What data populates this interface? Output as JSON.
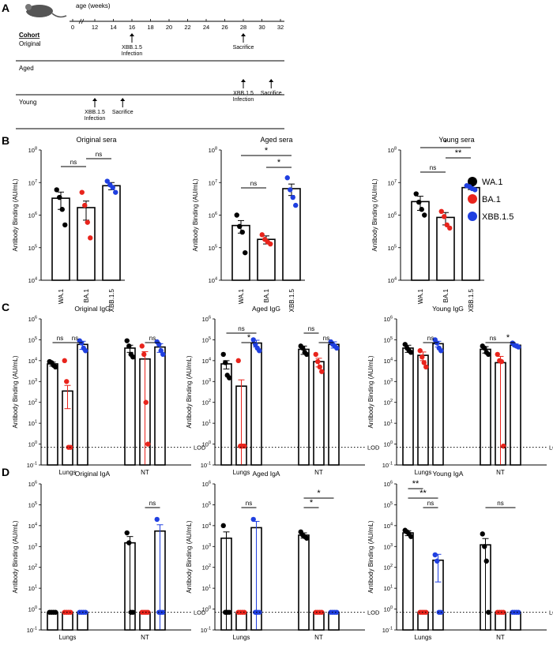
{
  "panel_labels": {
    "a": "A",
    "b": "B",
    "c": "C",
    "d": "D"
  },
  "timeline": {
    "axis_title": "age (weeks)",
    "ticks": [
      "0",
      "12",
      "14",
      "16",
      "18",
      "20",
      "22",
      "24",
      "26",
      "28",
      "30",
      "32"
    ],
    "cohort_header": "Cohort",
    "rows": [
      {
        "name": "Original",
        "events": [
          {
            "week": 16,
            "label": "XBB.1.5\nInfection"
          },
          {
            "week": 28,
            "label": "Sacrifice"
          }
        ]
      },
      {
        "name": "Aged",
        "events": [
          {
            "week": 28,
            "label": "XBB.1.5\nInfection"
          },
          {
            "week": 31,
            "label": "Sacrifice"
          }
        ]
      },
      {
        "name": "Young",
        "events": [
          {
            "week": 12,
            "label": "XBB.1.5\nInfection"
          },
          {
            "week": 15,
            "label": "Sacrifice"
          }
        ]
      }
    ]
  },
  "legend": [
    {
      "label": "WA.1",
      "color": "#000000"
    },
    {
      "label": "BA.1",
      "color": "#e8241c"
    },
    {
      "label": "XBB.1.5",
      "color": "#1f3fe0"
    }
  ],
  "colors": {
    "WA.1": "#000000",
    "BA.1": "#e8241c",
    "XBB.1.5": "#1f3fe0"
  },
  "chart_data": [
    {
      "type": "bar",
      "panel": "B",
      "title": "Original sera",
      "ylabel": "Antibody Binding (AU/mL)",
      "yscale": "log",
      "ylim": [
        10000,
        100000000
      ],
      "yticks": [
        {
          "v": 10000,
          "b": "10",
          "e": "4"
        },
        {
          "v": 100000,
          "b": "10",
          "e": "5"
        },
        {
          "v": 1000000,
          "b": "10",
          "e": "6"
        },
        {
          "v": 10000000,
          "b": "10",
          "e": "7"
        },
        {
          "v": 100000000,
          "b": "10",
          "e": "8"
        }
      ],
      "categories": [
        "WA.1",
        "BA.1",
        "XBB.1.5"
      ],
      "values": [
        3300000,
        1700000,
        8000000
      ],
      "errors": [
        1800000,
        1000000,
        2000000
      ],
      "points": [
        [
          6000000,
          3500000,
          1500000,
          500000
        ],
        [
          5000000,
          2000000,
          600000,
          200000
        ],
        [
          11000000,
          8500000,
          7000000,
          5000000
        ]
      ],
      "sig": [
        {
          "from": 0,
          "to": 1,
          "label": "ns",
          "level": 0
        },
        {
          "from": 1,
          "to": 2,
          "label": "ns",
          "level": 1
        }
      ]
    },
    {
      "type": "bar",
      "panel": "B",
      "title": "Aged sera",
      "ylabel": "Antibody Binding (AU/mL)",
      "yscale": "log",
      "ylim": [
        10000,
        100000000
      ],
      "yticks": [
        {
          "v": 10000,
          "b": "10",
          "e": "4"
        },
        {
          "v": 100000,
          "b": "10",
          "e": "5"
        },
        {
          "v": 1000000,
          "b": "10",
          "e": "6"
        },
        {
          "v": 10000000,
          "b": "10",
          "e": "7"
        },
        {
          "v": 100000000,
          "b": "10",
          "e": "8"
        }
      ],
      "categories": [
        "WA.1",
        "BA.1",
        "XBB.1.5"
      ],
      "values": [
        480000,
        180000,
        6500000
      ],
      "errors": [
        200000,
        50000,
        2500000
      ],
      "points": [
        [
          1000000,
          450000,
          300000,
          70000
        ],
        [
          250000,
          180000,
          150000,
          130000
        ],
        [
          14000000,
          6000000,
          3500000,
          2000000
        ]
      ],
      "sig": [
        {
          "from": 0,
          "to": 1,
          "label": "ns",
          "level": 0
        },
        {
          "from": 1,
          "to": 2,
          "label": "*",
          "level": 1
        },
        {
          "from": 0,
          "to": 2,
          "label": "*",
          "level": 2
        }
      ]
    },
    {
      "type": "bar",
      "panel": "B",
      "title": "Young sera",
      "ylabel": "Antibody Binding (AU/mL)",
      "yscale": "log",
      "ylim": [
        10000,
        100000000
      ],
      "yticks": [
        {
          "v": 10000,
          "b": "10",
          "e": "4"
        },
        {
          "v": 100000,
          "b": "10",
          "e": "5"
        },
        {
          "v": 1000000,
          "b": "10",
          "e": "6"
        },
        {
          "v": 10000000,
          "b": "10",
          "e": "7"
        },
        {
          "v": 100000000,
          "b": "10",
          "e": "8"
        }
      ],
      "categories": [
        "WA.1",
        "BA.1",
        "XBB.1.5"
      ],
      "values": [
        2600000,
        850000,
        7000000
      ],
      "errors": [
        1200000,
        350000,
        900000
      ],
      "points": [
        [
          4500000,
          2500000,
          1500000,
          1000000
        ],
        [
          1300000,
          900000,
          500000,
          400000
        ],
        [
          8000000,
          7500000,
          6500000,
          6000000
        ]
      ],
      "sig": [
        {
          "from": 0,
          "to": 1,
          "label": "ns",
          "level": 0
        },
        {
          "from": 1,
          "to": 2,
          "label": "**",
          "level": 1
        },
        {
          "from": 0,
          "to": 2,
          "label": "*",
          "level": 2
        }
      ]
    },
    {
      "type": "bar",
      "panel": "C",
      "title": "Original IgG",
      "ylabel": "Antibody Binding (AU/mL)",
      "yscale": "log",
      "ylim": [
        0.1,
        1000000
      ],
      "yticks": [
        {
          "v": 0.1,
          "b": "10",
          "e": "-1"
        },
        {
          "v": 1,
          "b": "10",
          "e": "0"
        },
        {
          "v": 10,
          "b": "10",
          "e": "1"
        },
        {
          "v": 100,
          "b": "10",
          "e": "2"
        },
        {
          "v": 1000,
          "b": "10",
          "e": "3"
        },
        {
          "v": 10000,
          "b": "10",
          "e": "4"
        },
        {
          "v": 100000,
          "b": "10",
          "e": "5"
        },
        {
          "v": 1000000,
          "b": "10",
          "e": "6"
        }
      ],
      "groups": [
        "Lungs",
        "NT"
      ],
      "lod": 0.7,
      "lod_label": "LOD",
      "values": [
        [
          7000,
          350,
          60000
        ],
        [
          40000,
          12000,
          45000
        ]
      ],
      "errors": [
        [
          1500,
          300,
          25000
        ],
        [
          15000,
          15000,
          20000
        ]
      ],
      "points": [
        [
          [
            9000,
            8000,
            6000,
            5000
          ],
          [
            10000,
            1000,
            0.7,
            0.7
          ],
          [
            90000,
            70000,
            40000,
            30000
          ]
        ],
        [
          [
            90000,
            50000,
            20000,
            15000
          ],
          [
            50000,
            20000,
            100,
            1
          ],
          [
            80000,
            60000,
            30000,
            20000
          ]
        ]
      ],
      "sig": [
        {
          "g": 0,
          "from": 0,
          "to": 1,
          "label": "ns",
          "level": 0
        },
        {
          "g": 0,
          "from": 1,
          "to": 2,
          "label": "ns",
          "level": 0
        },
        {
          "g": 1,
          "from": 1,
          "to": 2,
          "label": "ns",
          "level": 0
        }
      ]
    },
    {
      "type": "bar",
      "panel": "C",
      "title": "Aged IgG",
      "ylabel": "Antibody Binding (AU/mL)",
      "yscale": "log",
      "ylim": [
        0.1,
        1000000
      ],
      "yticks": [
        {
          "v": 0.1,
          "b": "10",
          "e": "-1"
        },
        {
          "v": 1,
          "b": "10",
          "e": "0"
        },
        {
          "v": 10,
          "b": "10",
          "e": "1"
        },
        {
          "v": 100,
          "b": "10",
          "e": "2"
        },
        {
          "v": 1000,
          "b": "10",
          "e": "3"
        },
        {
          "v": 10000,
          "b": "10",
          "e": "4"
        },
        {
          "v": 100000,
          "b": "10",
          "e": "5"
        },
        {
          "v": 1000000,
          "b": "10",
          "e": "6"
        }
      ],
      "groups": [
        "Lungs",
        "NT"
      ],
      "lod": 0.7,
      "lod_label": "LOD",
      "values": [
        [
          7000,
          600,
          70000
        ],
        [
          35000,
          9000,
          60000
        ]
      ],
      "errors": [
        [
          3000,
          600,
          25000
        ],
        [
          15000,
          4000,
          20000
        ]
      ],
      "points": [
        [
          [
            20000,
            8000,
            2000,
            1500
          ],
          [
            10000,
            0.8,
            0.8,
            0.8
          ],
          [
            100000,
            60000,
            40000,
            30000
          ]
        ],
        [
          [
            50000,
            40000,
            25000,
            20000
          ],
          [
            20000,
            9000,
            5000,
            3000
          ],
          [
            80000,
            60000,
            50000,
            40000
          ]
        ]
      ],
      "sig": [
        {
          "g": 0,
          "from": 1,
          "to": 2,
          "label": "*",
          "level": 0
        },
        {
          "g": 0,
          "from": 0,
          "to": 2,
          "label": "ns",
          "level": 1
        },
        {
          "g": 1,
          "from": 1,
          "to": 2,
          "label": "ns",
          "level": 0
        },
        {
          "g": 1,
          "from": 0,
          "to": 1,
          "label": "ns",
          "level": 1
        }
      ]
    },
    {
      "type": "bar",
      "panel": "C",
      "title": "Young IgG",
      "ylabel": "Antibody Binding (AU/mL)",
      "yscale": "log",
      "ylim": [
        0.1,
        1000000
      ],
      "yticks": [
        {
          "v": 0.1,
          "b": "10",
          "e": "-1"
        },
        {
          "v": 1,
          "b": "10",
          "e": "0"
        },
        {
          "v": 10,
          "b": "10",
          "e": "1"
        },
        {
          "v": 100,
          "b": "10",
          "e": "2"
        },
        {
          "v": 1000,
          "b": "10",
          "e": "3"
        },
        {
          "v": 10000,
          "b": "10",
          "e": "4"
        },
        {
          "v": 100000,
          "b": "10",
          "e": "5"
        },
        {
          "v": 1000000,
          "b": "10",
          "e": "6"
        }
      ],
      "groups": [
        "Lungs",
        "NT"
      ],
      "lod": 0.7,
      "lod_label": "LOD",
      "values": [
        [
          40000,
          18000,
          65000
        ],
        [
          35000,
          8000,
          55000
        ]
      ],
      "errors": [
        [
          15000,
          8000,
          20000
        ],
        [
          12000,
          8000,
          8000
        ]
      ],
      "points": [
        [
          [
            60000,
            40000,
            30000,
            25000
          ],
          [
            30000,
            15000,
            8000,
            5000
          ],
          [
            100000,
            70000,
            40000,
            30000
          ]
        ],
        [
          [
            50000,
            40000,
            25000,
            20000
          ],
          [
            20000,
            10000,
            9000,
            0.8
          ],
          [
            70000,
            55000,
            50000,
            45000
          ]
        ]
      ],
      "sig": [
        {
          "g": 0,
          "from": 1,
          "to": 2,
          "label": "ns",
          "level": 0
        },
        {
          "g": 1,
          "from": 0,
          "to": 1,
          "label": "ns",
          "level": 0
        },
        {
          "g": 1,
          "from": 1,
          "to": 2,
          "label": "*",
          "level": 0
        }
      ]
    },
    {
      "type": "bar",
      "panel": "D",
      "title": "Original IgA",
      "ylabel": "Antibody Binding (AU/mL)",
      "yscale": "log",
      "ylim": [
        0.1,
        1000000
      ],
      "yticks": [
        {
          "v": 0.1,
          "b": "10",
          "e": "-1"
        },
        {
          "v": 1,
          "b": "10",
          "e": "0"
        },
        {
          "v": 10,
          "b": "10",
          "e": "1"
        },
        {
          "v": 100,
          "b": "10",
          "e": "2"
        },
        {
          "v": 1000,
          "b": "10",
          "e": "3"
        },
        {
          "v": 10000,
          "b": "10",
          "e": "4"
        },
        {
          "v": 100000,
          "b": "10",
          "e": "5"
        },
        {
          "v": 1000000,
          "b": "10",
          "e": "6"
        }
      ],
      "groups": [
        "Lungs",
        "NT"
      ],
      "lod": 0.7,
      "lod_label": "LOD",
      "values": [
        [
          0.7,
          0.7,
          0.7
        ],
        [
          1500,
          0.7,
          5500
        ]
      ],
      "errors": [
        [
          0,
          0,
          0
        ],
        [
          1500,
          0,
          5500
        ]
      ],
      "points": [
        [
          [
            0.7,
            0.7,
            0.7,
            0.7
          ],
          [
            0.7,
            0.7,
            0.7,
            0.7
          ],
          [
            0.7,
            0.7,
            0.7,
            0.7
          ]
        ],
        [
          [
            4500,
            1500,
            0.7,
            0.7
          ],
          [
            0.7,
            0.7,
            0.7,
            0.7
          ],
          [
            20000,
            0.7,
            0.7,
            0.7
          ]
        ]
      ],
      "sig": [
        {
          "g": 1,
          "from": 1,
          "to": 2,
          "label": "ns",
          "level": 0
        }
      ]
    },
    {
      "type": "bar",
      "panel": "D",
      "title": "Aged IgA",
      "ylabel": "Antibody Binding (AU/mL)",
      "yscale": "log",
      "ylim": [
        0.1,
        1000000
      ],
      "yticks": [
        {
          "v": 0.1,
          "b": "10",
          "e": "-1"
        },
        {
          "v": 1,
          "b": "10",
          "e": "0"
        },
        {
          "v": 10,
          "b": "10",
          "e": "1"
        },
        {
          "v": 100,
          "b": "10",
          "e": "2"
        },
        {
          "v": 1000,
          "b": "10",
          "e": "3"
        },
        {
          "v": 10000,
          "b": "10",
          "e": "4"
        },
        {
          "v": 100000,
          "b": "10",
          "e": "5"
        },
        {
          "v": 1000000,
          "b": "10",
          "e": "6"
        }
      ],
      "groups": [
        "Lungs",
        "NT"
      ],
      "lod": 0.7,
      "lod_label": "LOD",
      "values": [
        [
          2500,
          0.7,
          8000
        ],
        [
          3500,
          0.7,
          0.7
        ]
      ],
      "errors": [
        [
          2500,
          0,
          8000
        ],
        [
          1000,
          0,
          0
        ]
      ],
      "points": [
        [
          [
            10000,
            0.7,
            0.7,
            0.7
          ],
          [
            0.7,
            0.7,
            0.7,
            0.7
          ],
          [
            20000,
            0.7,
            0.7,
            0.7
          ]
        ],
        [
          [
            5000,
            3500,
            3000,
            2500
          ],
          [
            0.7,
            0.7,
            0.7,
            0.7
          ],
          [
            0.7,
            0.7,
            0.7,
            0.7
          ]
        ]
      ],
      "sig": [
        {
          "g": 0,
          "from": 1,
          "to": 2,
          "label": "ns",
          "level": 0
        },
        {
          "g": 1,
          "from": 0,
          "to": 1,
          "label": "*",
          "level": 0
        },
        {
          "g": 1,
          "from": 0,
          "to": 2,
          "label": "*",
          "level": 1
        }
      ]
    },
    {
      "type": "bar",
      "panel": "D",
      "title": "Young IgA",
      "ylabel": "Antibody Binding (AU/mL)",
      "yscale": "log",
      "ylim": [
        0.1,
        1000000
      ],
      "yticks": [
        {
          "v": 0.1,
          "b": "10",
          "e": "-1"
        },
        {
          "v": 1,
          "b": "10",
          "e": "0"
        },
        {
          "v": 10,
          "b": "10",
          "e": "1"
        },
        {
          "v": 100,
          "b": "10",
          "e": "2"
        },
        {
          "v": 1000,
          "b": "10",
          "e": "3"
        },
        {
          "v": 10000,
          "b": "10",
          "e": "4"
        },
        {
          "v": 100000,
          "b": "10",
          "e": "5"
        },
        {
          "v": 1000000,
          "b": "10",
          "e": "6"
        }
      ],
      "groups": [
        "Lungs",
        "NT"
      ],
      "lod": 0.7,
      "lod_label": "LOD",
      "values": [
        [
          4500,
          0.7,
          220
        ],
        [
          1200,
          0.7,
          0.7
        ]
      ],
      "errors": [
        [
          1200,
          0,
          200
        ],
        [
          1200,
          0,
          0
        ]
      ],
      "points": [
        [
          [
            6000,
            5000,
            4000,
            3000
          ],
          [
            0.7,
            0.7,
            0.7,
            0.7
          ],
          [
            400,
            200,
            0.7,
            0.7
          ]
        ],
        [
          [
            4000,
            1000,
            200,
            0.7
          ],
          [
            0.7,
            0.7,
            0.7,
            0.7
          ],
          [
            0.7,
            0.7,
            0.7,
            0.7
          ]
        ]
      ],
      "sig": [
        {
          "g": 0,
          "from": 1,
          "to": 2,
          "label": "ns",
          "level": 0
        },
        {
          "g": 0,
          "from": 0,
          "to": 2,
          "label": "**",
          "level": 1
        },
        {
          "g": 0,
          "from": 0,
          "to": 1,
          "label": "**",
          "level": 2
        },
        {
          "g": 1,
          "from": 0,
          "to": 2,
          "label": "ns",
          "level": 0
        }
      ]
    }
  ]
}
